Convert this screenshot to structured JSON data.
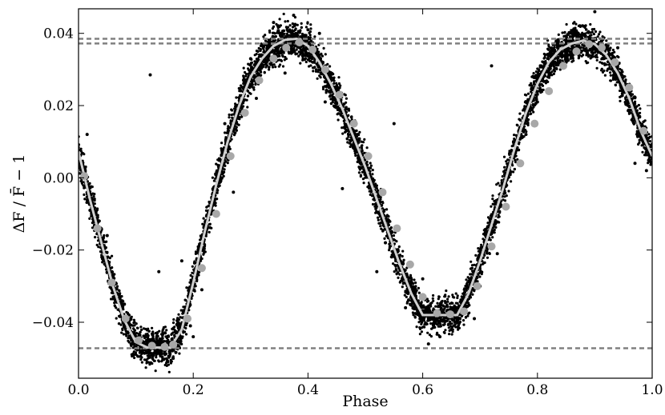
{
  "chart_data": {
    "type": "scatter",
    "xlabel": "Phase",
    "ylabel": "ΔF / F̄ − 1",
    "xlim": [
      0.0,
      1.0
    ],
    "ylim": [
      -0.0555,
      0.0468
    ],
    "x_ticks": [
      0.0,
      0.2,
      0.4,
      0.6,
      0.8,
      1.0
    ],
    "x_tick_labels": [
      "0.0",
      "0.2",
      "0.4",
      "0.6",
      "0.8",
      "1.0"
    ],
    "y_ticks": [
      -0.04,
      -0.02,
      0.0,
      0.02,
      0.04
    ],
    "y_tick_labels": [
      "−0.04",
      "−0.02",
      "0.00",
      "0.02",
      "0.04"
    ],
    "grid": false,
    "colors": {
      "points": "#000000",
      "model_line": "#cfcfcf",
      "binned_markers": "#a8a8a8",
      "reference_lines": "#808080"
    },
    "reference_lines_y": [
      0.0385,
      0.0372,
      -0.0472
    ],
    "model_curve": {
      "x": [
        0.0,
        0.02,
        0.04,
        0.06,
        0.08,
        0.1,
        0.12,
        0.14,
        0.16,
        0.18,
        0.2,
        0.22,
        0.24,
        0.26,
        0.28,
        0.3,
        0.32,
        0.34,
        0.36,
        0.38,
        0.4,
        0.42,
        0.44,
        0.46,
        0.48,
        0.5,
        0.52,
        0.54,
        0.56,
        0.58,
        0.6,
        0.62,
        0.64,
        0.66,
        0.68,
        0.7,
        0.72,
        0.74,
        0.76,
        0.78,
        0.8,
        0.82,
        0.84,
        0.86,
        0.88,
        0.9,
        0.92,
        0.94,
        0.96,
        0.98,
        1.0
      ],
      "y": [
        0.0072,
        -0.006,
        -0.018,
        -0.03,
        -0.0395,
        -0.0455,
        -0.047,
        -0.047,
        -0.047,
        -0.042,
        -0.029,
        -0.015,
        -0.002,
        0.01,
        0.02,
        0.028,
        0.033,
        0.0365,
        0.0382,
        0.0385,
        0.0365,
        0.032,
        0.026,
        0.019,
        0.011,
        0.003,
        -0.006,
        -0.015,
        -0.024,
        -0.032,
        -0.038,
        -0.038,
        -0.038,
        -0.038,
        -0.032,
        -0.023,
        -0.013,
        -0.003,
        0.008,
        0.018,
        0.026,
        0.032,
        0.0355,
        0.0372,
        0.038,
        0.037,
        0.034,
        0.029,
        0.022,
        0.013,
        0.006
      ]
    },
    "binned_points": {
      "x": [
        0.01,
        0.033,
        0.058,
        0.082,
        0.105,
        0.128,
        0.15,
        0.165,
        0.19,
        0.215,
        0.24,
        0.265,
        0.29,
        0.315,
        0.34,
        0.362,
        0.385,
        0.408,
        0.43,
        0.455,
        0.48,
        0.505,
        0.53,
        0.555,
        0.578,
        0.6,
        0.625,
        0.648,
        0.672,
        0.695,
        0.72,
        0.745,
        0.77,
        0.795,
        0.82,
        0.845,
        0.868,
        0.89,
        0.912,
        0.935,
        0.96,
        0.985
      ],
      "y": [
        0.0005,
        -0.014,
        -0.029,
        -0.039,
        -0.045,
        -0.0465,
        -0.0468,
        -0.0462,
        -0.039,
        -0.025,
        -0.01,
        0.006,
        0.018,
        0.027,
        0.033,
        0.036,
        0.0375,
        0.0355,
        0.03,
        0.023,
        0.015,
        0.006,
        -0.004,
        -0.014,
        -0.024,
        -0.033,
        -0.0375,
        -0.0378,
        -0.037,
        -0.03,
        -0.019,
        -0.008,
        0.004,
        0.015,
        0.024,
        0.031,
        0.035,
        0.037,
        0.036,
        0.032,
        0.025,
        0.013
      ]
    },
    "scatter_points": {
      "x": [
        0.08,
        0.125,
        0.14,
        0.215,
        0.255,
        0.31,
        0.375,
        0.4,
        0.43,
        0.46,
        0.52,
        0.55,
        0.58,
        0.6,
        0.63,
        0.66,
        0.7,
        0.72,
        0.76,
        0.85,
        0.9,
        0.97,
        0.02,
        0.05,
        0.18,
        0.195,
        0.34,
        0.36,
        0.49,
        0.535,
        0.62,
        0.69,
        0.8,
        0.94,
        0.11,
        0.165,
        0.3,
        0.42,
        0.57,
        0.65,
        0.78,
        0.88,
        0.015,
        0.27,
        0.44,
        0.61,
        0.73,
        0.86,
        0.99,
        0.2
      ],
      "y": [
        -0.035,
        0.0285,
        -0.026,
        -0.031,
        0.015,
        0.022,
        0.045,
        0.041,
        0.021,
        -0.003,
        -0.026,
        0.015,
        -0.033,
        -0.028,
        -0.044,
        -0.036,
        -0.03,
        0.031,
        0.009,
        0.032,
        0.046,
        0.004,
        -0.009,
        -0.016,
        -0.023,
        -0.041,
        0.043,
        0.029,
        0.005,
        -0.018,
        -0.04,
        -0.039,
        0.021,
        0.036,
        -0.048,
        -0.05,
        0.033,
        0.04,
        -0.036,
        -0.042,
        0.012,
        0.042,
        0.012,
        -0.004,
        0.029,
        -0.046,
        -0.021,
        0.039,
        0.002,
        -0.044
      ]
    },
    "point_cloud": {
      "count": 6500,
      "scatter_amplitude": 0.0025,
      "seed": 12345
    }
  }
}
